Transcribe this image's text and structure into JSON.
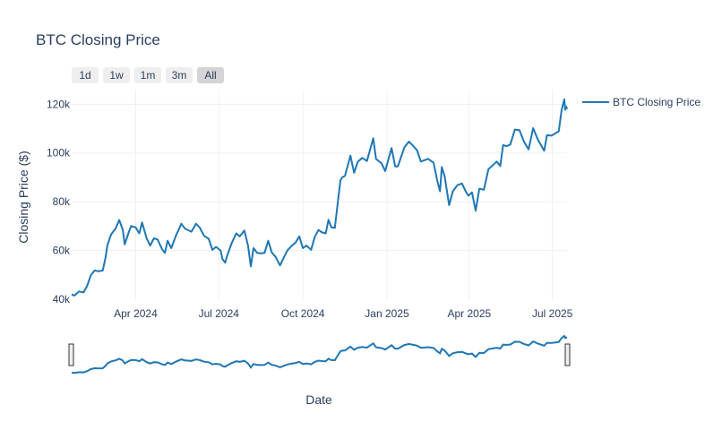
{
  "title": "BTC Closing Price",
  "range_selector": {
    "buttons": [
      "1d",
      "1w",
      "1m",
      "3m",
      "All"
    ],
    "active": "All"
  },
  "colors": {
    "series": "#1f77b4",
    "grid": "#eef0f4",
    "text": "#2a3f5f"
  },
  "chart_data": {
    "type": "line",
    "title": "BTC Closing Price",
    "xlabel": "Date",
    "ylabel": "Closing Price ($)",
    "x_range": [
      "2024-01-22",
      "2025-07-17"
    ],
    "y_range": [
      40000,
      126000
    ],
    "x_ticks": [
      {
        "date": "2024-04-01",
        "label": "Apr 2024"
      },
      {
        "date": "2024-07-01",
        "label": "Jul 2024"
      },
      {
        "date": "2024-10-01",
        "label": "Oct 2024"
      },
      {
        "date": "2025-01-01",
        "label": "Jan 2025"
      },
      {
        "date": "2025-04-01",
        "label": "Apr 2025"
      },
      {
        "date": "2025-07-01",
        "label": "Jul 2025"
      }
    ],
    "y_ticks": [
      {
        "value": 40000,
        "label": "40k"
      },
      {
        "value": 60000,
        "label": "60k"
      },
      {
        "value": 80000,
        "label": "80k"
      },
      {
        "value": 100000,
        "label": "100k"
      },
      {
        "value": 120000,
        "label": "120k"
      }
    ],
    "grid": true,
    "legend_position": "top-right",
    "rangeslider": true,
    "series": [
      {
        "name": "BTC Closing Price",
        "points": [
          [
            "2024-01-22",
            42000
          ],
          [
            "2024-01-25",
            41500
          ],
          [
            "2024-01-30",
            43200
          ],
          [
            "2024-02-04",
            42800
          ],
          [
            "2024-02-08",
            45500
          ],
          [
            "2024-02-12",
            49800
          ],
          [
            "2024-02-16",
            51800
          ],
          [
            "2024-02-20",
            51500
          ],
          [
            "2024-02-25",
            51800
          ],
          [
            "2024-02-28",
            57000
          ],
          [
            "2024-03-01",
            62000
          ],
          [
            "2024-03-05",
            66500
          ],
          [
            "2024-03-08",
            68000
          ],
          [
            "2024-03-10",
            69000
          ],
          [
            "2024-03-14",
            72500
          ],
          [
            "2024-03-18",
            68500
          ],
          [
            "2024-03-20",
            62500
          ],
          [
            "2024-03-24",
            67000
          ],
          [
            "2024-03-27",
            70000
          ],
          [
            "2024-04-01",
            69500
          ],
          [
            "2024-04-05",
            67000
          ],
          [
            "2024-04-08",
            71500
          ],
          [
            "2024-04-13",
            65000
          ],
          [
            "2024-04-17",
            62000
          ],
          [
            "2024-04-21",
            65000
          ],
          [
            "2024-04-25",
            64500
          ],
          [
            "2024-04-30",
            60500
          ],
          [
            "2024-05-03",
            59000
          ],
          [
            "2024-05-06",
            64000
          ],
          [
            "2024-05-10",
            61000
          ],
          [
            "2024-05-15",
            66000
          ],
          [
            "2024-05-21",
            71000
          ],
          [
            "2024-05-25",
            69000
          ],
          [
            "2024-06-01",
            67700
          ],
          [
            "2024-06-06",
            71000
          ],
          [
            "2024-06-10",
            69500
          ],
          [
            "2024-06-15",
            66000
          ],
          [
            "2024-06-20",
            64800
          ],
          [
            "2024-06-24",
            60300
          ],
          [
            "2024-06-28",
            61500
          ],
          [
            "2024-07-03",
            60000
          ],
          [
            "2024-07-05",
            56500
          ],
          [
            "2024-07-08",
            55000
          ],
          [
            "2024-07-10",
            57800
          ],
          [
            "2024-07-15",
            63000
          ],
          [
            "2024-07-20",
            67000
          ],
          [
            "2024-07-24",
            65800
          ],
          [
            "2024-07-29",
            68200
          ],
          [
            "2024-08-02",
            62000
          ],
          [
            "2024-08-05",
            53500
          ],
          [
            "2024-08-08",
            61000
          ],
          [
            "2024-08-12",
            59000
          ],
          [
            "2024-08-16",
            58800
          ],
          [
            "2024-08-20",
            59000
          ],
          [
            "2024-08-24",
            64000
          ],
          [
            "2024-08-28",
            59200
          ],
          [
            "2024-09-01",
            57500
          ],
          [
            "2024-09-06",
            53900
          ],
          [
            "2024-09-10",
            57000
          ],
          [
            "2024-09-14",
            60000
          ],
          [
            "2024-09-19",
            62000
          ],
          [
            "2024-09-23",
            63300
          ],
          [
            "2024-09-27",
            65800
          ],
          [
            "2024-10-01",
            61000
          ],
          [
            "2024-10-05",
            62000
          ],
          [
            "2024-10-10",
            60300
          ],
          [
            "2024-10-14",
            65600
          ],
          [
            "2024-10-18",
            68400
          ],
          [
            "2024-10-22",
            67400
          ],
          [
            "2024-10-26",
            67000
          ],
          [
            "2024-10-29",
            72600
          ],
          [
            "2024-11-01",
            69500
          ],
          [
            "2024-11-05",
            69300
          ],
          [
            "2024-11-07",
            75900
          ],
          [
            "2024-11-11",
            88700
          ],
          [
            "2024-11-13",
            90000
          ],
          [
            "2024-11-16",
            90600
          ],
          [
            "2024-11-22",
            98900
          ],
          [
            "2024-11-26",
            91900
          ],
          [
            "2024-11-30",
            96400
          ],
          [
            "2024-12-05",
            98000
          ],
          [
            "2024-12-10",
            96700
          ],
          [
            "2024-12-17",
            106000
          ],
          [
            "2024-12-20",
            97500
          ],
          [
            "2024-12-26",
            95800
          ],
          [
            "2024-12-30",
            92600
          ],
          [
            "2025-01-06",
            102000
          ],
          [
            "2025-01-10",
            94500
          ],
          [
            "2025-01-13",
            94500
          ],
          [
            "2025-01-20",
            102300
          ],
          [
            "2025-01-25",
            104700
          ],
          [
            "2025-01-31",
            102400
          ],
          [
            "2025-02-03",
            101000
          ],
          [
            "2025-02-07",
            96500
          ],
          [
            "2025-02-15",
            97600
          ],
          [
            "2025-02-21",
            96000
          ],
          [
            "2025-02-25",
            88700
          ],
          [
            "2025-02-28",
            84300
          ],
          [
            "2025-03-02",
            94200
          ],
          [
            "2025-03-05",
            90600
          ],
          [
            "2025-03-10",
            78600
          ],
          [
            "2025-03-14",
            84300
          ],
          [
            "2025-03-19",
            86800
          ],
          [
            "2025-03-24",
            87500
          ],
          [
            "2025-03-28",
            84400
          ],
          [
            "2025-03-31",
            82500
          ],
          [
            "2025-04-04",
            83800
          ],
          [
            "2025-04-08",
            76300
          ],
          [
            "2025-04-12",
            85300
          ],
          [
            "2025-04-17",
            84900
          ],
          [
            "2025-04-22",
            93400
          ],
          [
            "2025-04-26",
            94700
          ],
          [
            "2025-05-01",
            96500
          ],
          [
            "2025-05-05",
            94700
          ],
          [
            "2025-05-08",
            103200
          ],
          [
            "2025-05-12",
            102800
          ],
          [
            "2025-05-16",
            103500
          ],
          [
            "2025-05-21",
            109600
          ],
          [
            "2025-05-26",
            109400
          ],
          [
            "2025-05-31",
            104600
          ],
          [
            "2025-06-05",
            101500
          ],
          [
            "2025-06-10",
            110200
          ],
          [
            "2025-06-15",
            105500
          ],
          [
            "2025-06-22",
            100900
          ],
          [
            "2025-06-25",
            107300
          ],
          [
            "2025-06-30",
            107100
          ],
          [
            "2025-07-04",
            108000
          ],
          [
            "2025-07-08",
            108900
          ],
          [
            "2025-07-11",
            117500
          ],
          [
            "2025-07-14",
            122000
          ],
          [
            "2025-07-15",
            117700
          ],
          [
            "2025-07-16",
            119000
          ],
          [
            "2025-07-17",
            118000
          ]
        ]
      }
    ]
  }
}
